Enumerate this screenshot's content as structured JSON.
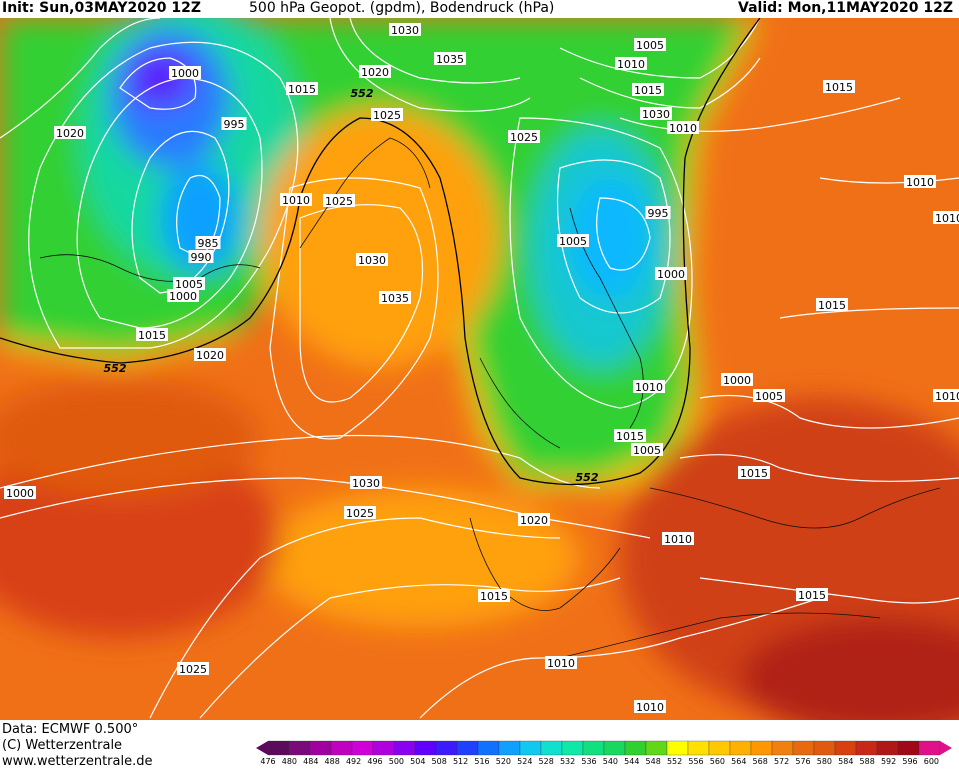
{
  "header": {
    "init": "Init: Sun,03MAY2020 12Z",
    "title": "500 hPa Geopot. (gpdm), Bodendruck (hPa)",
    "valid": "Valid: Mon,11MAY2020 12Z"
  },
  "footer": {
    "data": "Data: ECMWF  0.500°",
    "copyright": "(C) Wetterzentrale",
    "url": "www.wetterzentrale.de"
  },
  "scale": {
    "ticks": [
      "476",
      "480",
      "484",
      "488",
      "492",
      "496",
      "500",
      "504",
      "508",
      "512",
      "516",
      "520",
      "524",
      "528",
      "532",
      "536",
      "540",
      "544",
      "548",
      "552",
      "556",
      "560",
      "564",
      "568",
      "572",
      "576",
      "580",
      "584",
      "588",
      "592",
      "596",
      "600"
    ],
    "colors": [
      "#5c0a5c",
      "#7a0a7a",
      "#a000a0",
      "#c000c0",
      "#d000d8",
      "#b000e0",
      "#8a00f0",
      "#6000ff",
      "#3c1cff",
      "#2040ff",
      "#1070ff",
      "#10a0ff",
      "#10c8f0",
      "#10e0d0",
      "#10e8a8",
      "#10e080",
      "#18d860",
      "#30d030",
      "#60d818",
      "#ffff00",
      "#ffe000",
      "#ffc800",
      "#ffb000",
      "#ff9800",
      "#f08010",
      "#e86a10",
      "#e05a10",
      "#d84010",
      "#c82818",
      "#b01818",
      "#a00818",
      "#e0108a"
    ]
  },
  "pressure_labels": [
    "1030",
    "1005",
    "1010",
    "1015",
    "1015",
    "1020",
    "1035",
    "1000",
    "1015",
    "552",
    "1025",
    "1010",
    "1020",
    "995",
    "1025",
    "1030",
    "1025",
    "1010",
    "995",
    "985",
    "990",
    "1005",
    "1000",
    "1030",
    "1005",
    "1000",
    "1035",
    "1015",
    "1020",
    "552",
    "1010",
    "1000",
    "1005",
    "1015",
    "1005",
    "1010",
    "1030",
    "552",
    "1020",
    "1025",
    "1010",
    "1015",
    "1015",
    "1010",
    "1025",
    "1010",
    "1010",
    "1015",
    "1010",
    "1000",
    "1015"
  ]
}
